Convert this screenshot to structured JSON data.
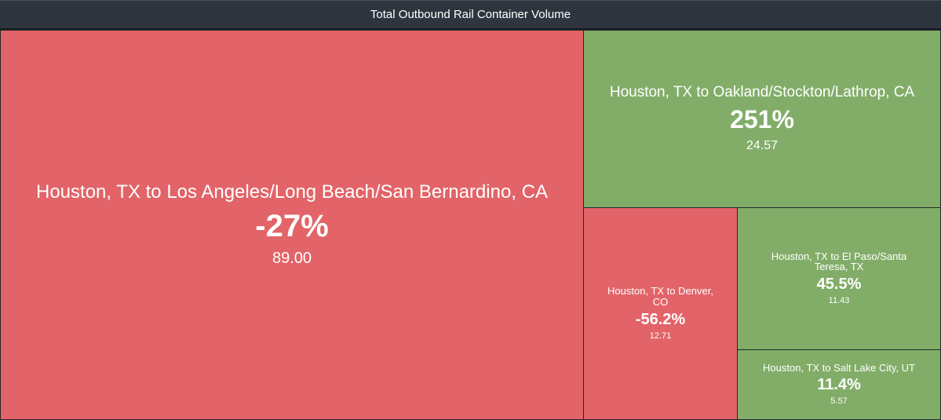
{
  "header": {
    "title": "Total Outbound Rail Container Volume"
  },
  "colors": {
    "negative": "#e26468",
    "positive": "#82ad68",
    "header": "#2e353e"
  },
  "chart_data": {
    "type": "treemap",
    "title": "Total Outbound Rail Container Volume",
    "items": [
      {
        "label": "Houston, TX to Los Angeles/Long Beach/San Bernardino, CA",
        "change": "-27%",
        "change_value": -27,
        "value": 89.0,
        "value_label": "89.00"
      },
      {
        "label": "Houston, TX to Oakland/Stockton/Lathrop, CA",
        "change": "251%",
        "change_value": 251,
        "value": 24.57,
        "value_label": "24.57"
      },
      {
        "label": "Houston, TX to Denver, CO",
        "change": "-56.2%",
        "change_value": -56.2,
        "value": 12.71,
        "value_label": "12.71"
      },
      {
        "label": "Houston, TX to El Paso/Santa Teresa, TX",
        "change": "45.5%",
        "change_value": 45.5,
        "value": 11.43,
        "value_label": "11.43"
      },
      {
        "label": "Houston, TX to Salt Lake City, UT",
        "change": "11.4%",
        "change_value": 11.4,
        "value": 5.57,
        "value_label": "5.57"
      }
    ]
  }
}
